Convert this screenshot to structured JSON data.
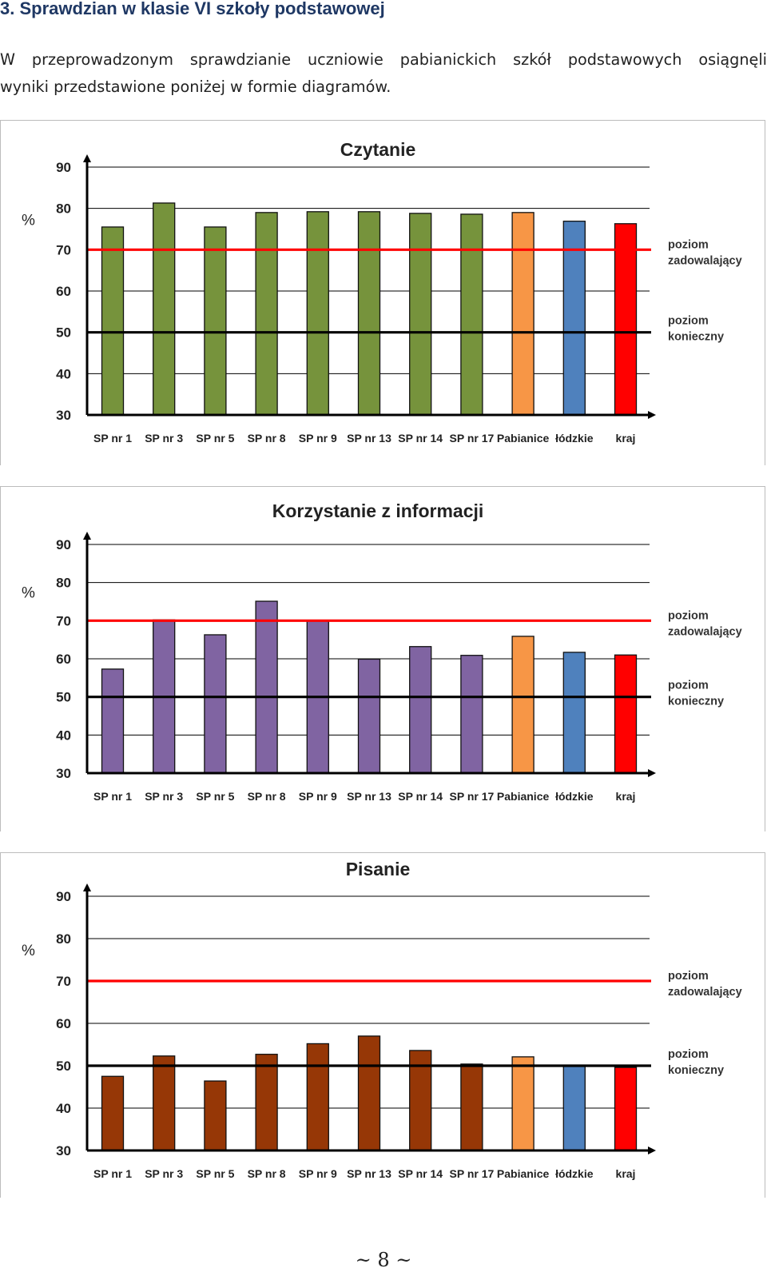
{
  "heading": "3. Sprawdzian w klasie VI szkoły podstawowej",
  "intro": {
    "line1": "W przeprowadzonym sprawdzianie uczniowie pabianickich szkół podstawowych osiągnęli",
    "line2": "wyniki przedstawione poniżej w formie diagramów."
  },
  "colors": {
    "school_czytanie": "#76933c",
    "school_korzystanie": "#8064a2",
    "school_pisanie": "#963706",
    "pabianice": "#f79646",
    "lodzkie": "#4f81bd",
    "kraj": "#ff0000",
    "line_zadowalajacy": "#ff0000",
    "line_konieczny": "#000000"
  },
  "footer": "~ 8 ~",
  "chart_data": [
    {
      "type": "bar",
      "title": "Czytanie",
      "ylabel": "%",
      "ylim": [
        30,
        90
      ],
      "yticks": [
        "30",
        "40",
        "50",
        "60",
        "70",
        "80",
        "90"
      ],
      "grid": true,
      "categories": [
        "SP nr 1",
        "SP nr 3",
        "SP nr 5",
        "SP nr 8",
        "SP nr 9",
        "SP nr 13",
        "SP nr 14",
        "SP nr 17",
        "Pabianice",
        "łódzkie",
        "kraj"
      ],
      "values": [
        75.5,
        81.3,
        75.5,
        79.0,
        79.2,
        79.2,
        78.8,
        78.6,
        79.0,
        76.9,
        76.3
      ],
      "reference_lines": [
        {
          "value": 70,
          "label": "poziom zadowalający",
          "label_lines": [
            "poziom",
            "zadowalający"
          ],
          "color": "#ff0000"
        },
        {
          "value": 50,
          "label": "poziom konieczny",
          "label_lines": [
            "poziom",
            "konieczny"
          ],
          "color": "#000000"
        }
      ]
    },
    {
      "type": "bar",
      "title": "Korzystanie z informacji",
      "ylabel": "%",
      "ylim": [
        30,
        90
      ],
      "yticks": [
        "30",
        "40",
        "50",
        "60",
        "70",
        "80",
        "90"
      ],
      "grid": true,
      "categories": [
        "SP nr 1",
        "SP nr 3",
        "SP nr 5",
        "SP nr 8",
        "SP nr 9",
        "SP nr 13",
        "SP nr 14",
        "SP nr 17",
        "Pabianice",
        "łódzkie",
        "kraj"
      ],
      "values": [
        57.3,
        70.2,
        66.3,
        75.1,
        69.9,
        59.9,
        63.2,
        60.9,
        65.9,
        61.7,
        61.0
      ],
      "reference_lines": [
        {
          "value": 70,
          "label": "poziom zadowalający",
          "label_lines": [
            "poziom",
            "zadowalający"
          ],
          "color": "#ff0000"
        },
        {
          "value": 50,
          "label": "poziom konieczny",
          "label_lines": [
            "poziom",
            "konieczny"
          ],
          "color": "#000000"
        }
      ]
    },
    {
      "type": "bar",
      "title": "Pisanie",
      "ylabel": "%",
      "ylim": [
        30,
        90
      ],
      "yticks": [
        "30",
        "40",
        "50",
        "60",
        "70",
        "80",
        "90"
      ],
      "grid": true,
      "categories": [
        "SP nr 1",
        "SP nr 3",
        "SP nr 5",
        "SP nr 8",
        "SP nr 9",
        "SP nr 13",
        "SP nr 14",
        "SP nr 17",
        "Pabianice",
        "łódzkie",
        "kraj"
      ],
      "values": [
        47.5,
        52.3,
        46.4,
        52.7,
        55.2,
        57.0,
        53.6,
        50.4,
        52.1,
        50.1,
        49.6
      ],
      "reference_lines": [
        {
          "value": 70,
          "label": "poziom zadowalający",
          "label_lines": [
            "poziom",
            "zadowalający"
          ],
          "color": "#ff0000"
        },
        {
          "value": 50,
          "label": "poziom konieczny",
          "label_lines": [
            "poziom",
            "konieczny"
          ],
          "color": "#000000"
        }
      ]
    }
  ]
}
